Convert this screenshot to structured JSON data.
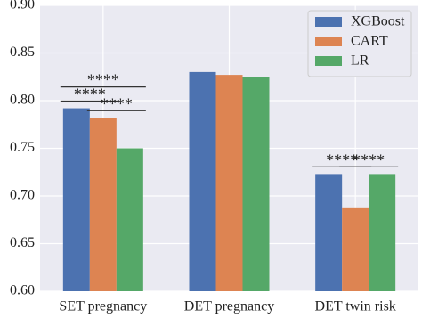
{
  "chart_data": {
    "type": "bar",
    "categories": [
      "SET pregnancy",
      "DET pregnancy",
      "DET twin risk"
    ],
    "series": [
      {
        "name": "XGBoost",
        "color": "#4c72b0",
        "values": [
          0.792,
          0.83,
          0.723
        ]
      },
      {
        "name": "CART",
        "color": "#dd8452",
        "values": [
          0.782,
          0.827,
          0.688
        ]
      },
      {
        "name": "LR",
        "color": "#55a868",
        "values": [
          0.75,
          0.825,
          0.723
        ]
      }
    ],
    "ylim": [
      0.6,
      0.9
    ],
    "yticks": [
      {
        "value": 0.6,
        "label": "0.60"
      },
      {
        "value": 0.65,
        "label": "0.65"
      },
      {
        "value": 0.7,
        "label": "0.70"
      },
      {
        "value": 0.75,
        "label": "0.75"
      },
      {
        "value": 0.8,
        "label": "0.80"
      },
      {
        "value": 0.85,
        "label": "0.85"
      },
      {
        "value": 0.9,
        "label": "0.90"
      }
    ],
    "grid": true,
    "legend": "upper right",
    "annotations": [
      {
        "text": "****",
        "category": 0,
        "between": [
          0,
          2
        ]
      },
      {
        "text": "****",
        "category": 0,
        "between": [
          0,
          1
        ]
      },
      {
        "text": "****",
        "category": 0,
        "between": [
          1,
          2
        ]
      },
      {
        "text": "****",
        "category": 2,
        "between": [
          0,
          1
        ]
      },
      {
        "text": "****",
        "category": 2,
        "between": [
          1,
          2
        ]
      }
    ]
  }
}
